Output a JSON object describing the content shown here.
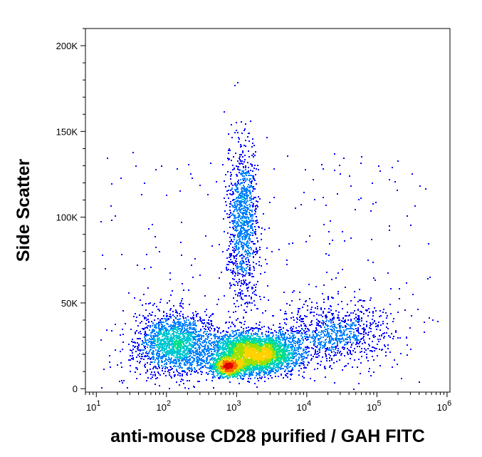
{
  "chart_data": {
    "type": "scatter",
    "subtype": "flow-cytometry-density-dot-plot",
    "xlabel": "anti-mouse CD28 purified / GAH FITC",
    "ylabel": "Side Scatter",
    "x_scale": "log",
    "xlim": [
      7,
      1100000
    ],
    "ylim": [
      -2000,
      210000
    ],
    "x_ticks": [
      {
        "value": 10,
        "base": "10",
        "exp": "1"
      },
      {
        "value": 100,
        "base": "10",
        "exp": "2"
      },
      {
        "value": 1000,
        "base": "10",
        "exp": "3"
      },
      {
        "value": 10000,
        "base": "10",
        "exp": "4"
      },
      {
        "value": 100000,
        "base": "10",
        "exp": "5"
      },
      {
        "value": 1000000,
        "base": "10",
        "exp": "6"
      }
    ],
    "y_ticks": [
      {
        "value": 0,
        "label": "0"
      },
      {
        "value": 50000,
        "label": "50K"
      },
      {
        "value": 100000,
        "label": "100K"
      },
      {
        "value": 150000,
        "label": "150K"
      },
      {
        "value": 200000,
        "label": "200K"
      }
    ],
    "density_colormap": [
      "#0000ff",
      "#0080ff",
      "#00c8d2",
      "#00e08c",
      "#a0e000",
      "#ffd200",
      "#ff6400",
      "#e00000"
    ],
    "grid": false,
    "legend": "none",
    "populations": [
      {
        "x_center": 130,
        "y_center": 27000,
        "x_log_sd": 0.28,
        "y_sd": 9000,
        "points": 1800
      },
      {
        "x_center": 1200,
        "y_center": 98000,
        "x_log_sd": 0.11,
        "y_sd": 24000,
        "points": 1100
      },
      {
        "x_center": 1800,
        "y_center": 21000,
        "x_log_sd": 0.32,
        "y_sd": 6000,
        "points": 3600
      },
      {
        "x_center": 750,
        "y_center": 13000,
        "x_log_sd": 0.12,
        "y_sd": 2500,
        "points": 900
      },
      {
        "x_center": 25000,
        "y_center": 33000,
        "x_log_sd": 0.4,
        "y_sd": 9000,
        "points": 900
      }
    ]
  }
}
